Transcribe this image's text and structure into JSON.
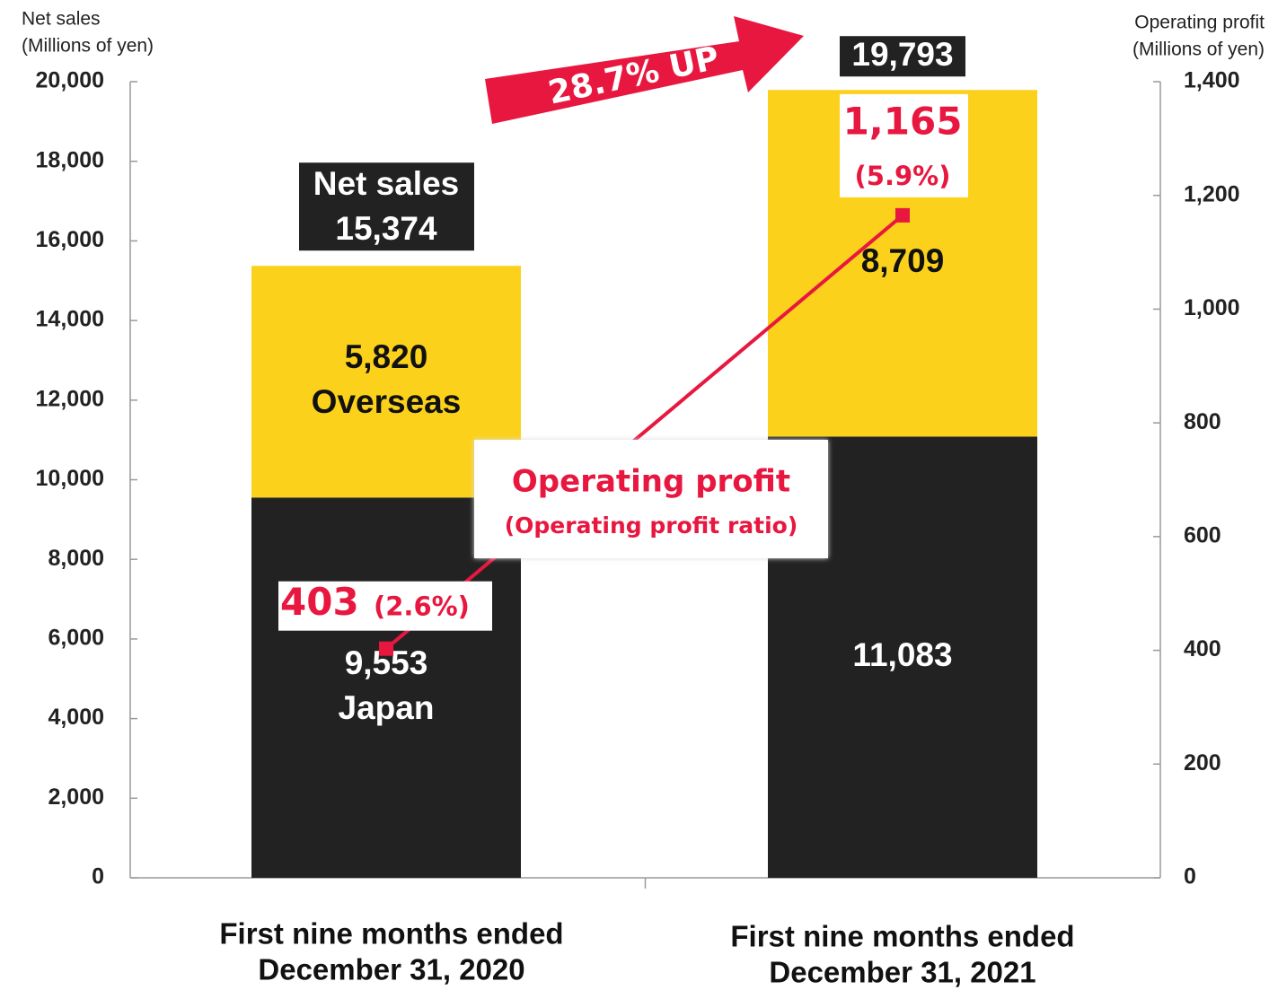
{
  "chart_data": {
    "type": "bar",
    "stacked": true,
    "ylabel": [
      "Net sales",
      "(Millions of yen)"
    ],
    "y2label": [
      "Operating profit",
      "(Millions of yen)"
    ],
    "categories": [
      [
        "First nine months ended",
        "December 31, 2020"
      ],
      [
        "First nine months ended",
        "December 31, 2021"
      ]
    ],
    "series": [
      {
        "name": "Japan",
        "color": "#222222",
        "text_color": "#ffffff",
        "values": [
          9553,
          11083
        ],
        "value_labels": [
          "9,553",
          "11,083"
        ]
      },
      {
        "name": "Overseas",
        "color": "#fcd11b",
        "text_color": "#111111",
        "values": [
          5820,
          8709
        ],
        "value_labels": [
          "5,820",
          "8,709"
        ]
      },
      {
        "name": "Operating profit",
        "type": "line",
        "axis": "y2",
        "color": "#e8173f",
        "values": [
          403,
          1165
        ],
        "value_labels": [
          "403",
          "1,165"
        ]
      }
    ],
    "total_name": "Net sales",
    "totals": [
      15374,
      19793
    ],
    "total_labels": [
      "15,374",
      "19,793"
    ],
    "ratio_name": "(Operating profit ratio)",
    "ratios": [
      2.6,
      5.9
    ],
    "ratio_labels": [
      "(2.6%)",
      "(5.9%)"
    ],
    "annotation": "28.7% UP",
    "ylim": [
      0,
      20000
    ],
    "yticks": [
      0,
      {
        "value": 2000,
        "label": "2,000"
      },
      {
        "value": 4000,
        "label": "4,000"
      },
      {
        "value": 6000,
        "label": "6,000"
      },
      {
        "value": 8000,
        "label": "8,000"
      },
      {
        "value": 10000,
        "label": "10,000"
      },
      {
        "value": 12000,
        "label": "12,000"
      },
      {
        "value": 14000,
        "label": "14,000"
      },
      {
        "value": 16000,
        "label": "16,000"
      },
      {
        "value": 18000,
        "label": "18,000"
      },
      {
        "value": 20000,
        "label": "20,000"
      }
    ],
    "y2lim": [
      0,
      1400
    ],
    "y2ticks": [
      0,
      200,
      400,
      600,
      800,
      {
        "value": 1000,
        "label": "1,000"
      },
      {
        "value": 1200,
        "label": "1,200"
      },
      {
        "value": 1400,
        "label": "1,400"
      }
    ]
  }
}
